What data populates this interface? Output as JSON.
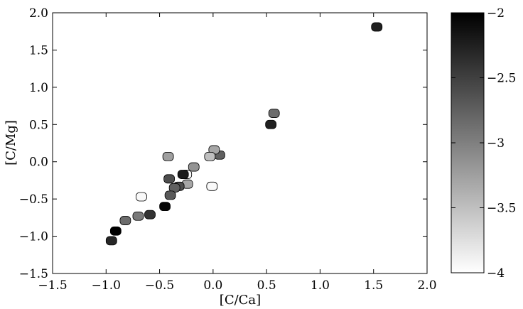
{
  "chart_data": {
    "type": "scatter",
    "xlabel": "[C/Ca]",
    "ylabel": "[C/Mg]",
    "xlim": [
      -1.5,
      2.0
    ],
    "ylim": [
      -1.5,
      2.0
    ],
    "xticks": [
      "−1.5",
      "−1.0",
      "−0.5",
      "0.0",
      "0.5",
      "1.0",
      "1.5",
      "2.0"
    ],
    "yticks": [
      "−1.5",
      "−1.0",
      "−0.5",
      "0.0",
      "0.5",
      "1.0",
      "1.5",
      "2.0"
    ],
    "grid": false,
    "colorbar": {
      "min": -4,
      "max": -2,
      "cmap": "gray_r",
      "ticks": [
        "−2",
        "−2.5",
        "−3",
        "−3.5",
        "−4"
      ],
      "tick_values": [
        -2,
        -2.5,
        -3,
        -3.5,
        -4
      ]
    },
    "points": [
      {
        "x": 1.53,
        "y": 1.81,
        "c": -2.25
      },
      {
        "x": 0.57,
        "y": 0.65,
        "c": -2.85
      },
      {
        "x": 0.54,
        "y": 0.5,
        "c": -2.25
      },
      {
        "x": 0.06,
        "y": 0.09,
        "c": -2.75
      },
      {
        "x": 0.01,
        "y": 0.16,
        "c": -3.3
      },
      {
        "x": -0.03,
        "y": 0.07,
        "c": -3.5
      },
      {
        "x": -0.01,
        "y": -0.33,
        "c": -3.95
      },
      {
        "x": -0.42,
        "y": 0.07,
        "c": -3.25
      },
      {
        "x": -0.18,
        "y": -0.07,
        "c": -3.15
      },
      {
        "x": -0.25,
        "y": -0.17,
        "c": -3.95
      },
      {
        "x": -0.28,
        "y": -0.17,
        "c": -2.2
      },
      {
        "x": -0.24,
        "y": -0.3,
        "c": -3.3
      },
      {
        "x": -0.41,
        "y": -0.23,
        "c": -2.6
      },
      {
        "x": -0.32,
        "y": -0.33,
        "c": -2.6
      },
      {
        "x": -0.36,
        "y": -0.35,
        "c": -2.75
      },
      {
        "x": -0.4,
        "y": -0.45,
        "c": -2.7
      },
      {
        "x": -0.45,
        "y": -0.6,
        "c": -2.05
      },
      {
        "x": -0.67,
        "y": -0.47,
        "c": -3.95
      },
      {
        "x": -0.59,
        "y": -0.71,
        "c": -2.4
      },
      {
        "x": -0.7,
        "y": -0.73,
        "c": -2.95
      },
      {
        "x": -0.82,
        "y": -0.79,
        "c": -2.85
      },
      {
        "x": -0.91,
        "y": -0.93,
        "c": -2.0
      },
      {
        "x": -0.95,
        "y": -1.06,
        "c": -2.3
      }
    ]
  }
}
